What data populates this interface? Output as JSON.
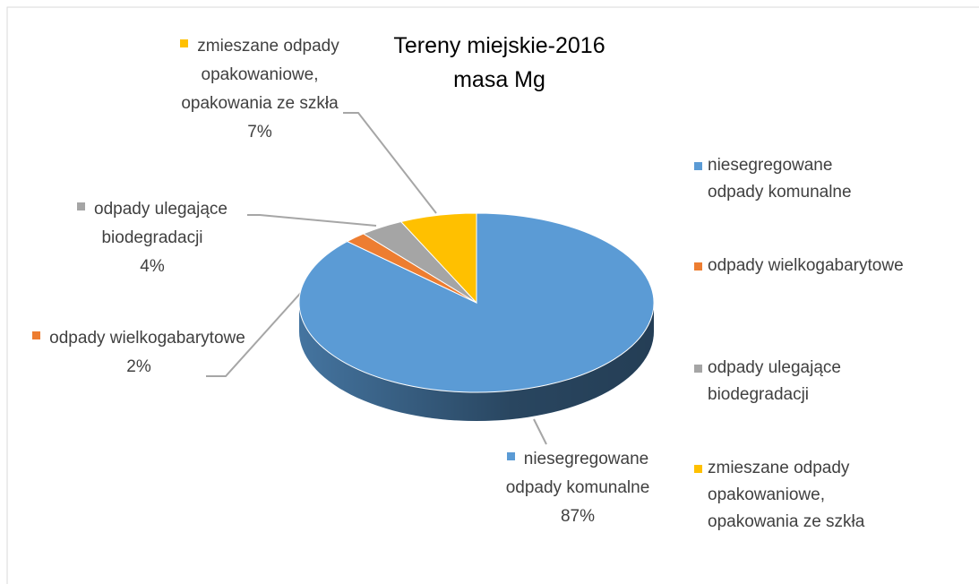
{
  "chart_data": {
    "type": "pie",
    "title": "Tereny miejskie-2016 masa Mg",
    "categories": [
      "niesegregowane odpady komunalne",
      "odpady wielkogabarytowe",
      "odpady ulegające biodegradacji",
      "zmieszane odpady opakowaniowe, opakowania ze szkła"
    ],
    "values": [
      87,
      2,
      4,
      7
    ],
    "value_labels": [
      "87%",
      "2%",
      "4%",
      "7%"
    ],
    "colors": [
      "#5b9bd5",
      "#ed7d31",
      "#a5a5a5",
      "#ffc000"
    ],
    "legend": "right"
  }
}
